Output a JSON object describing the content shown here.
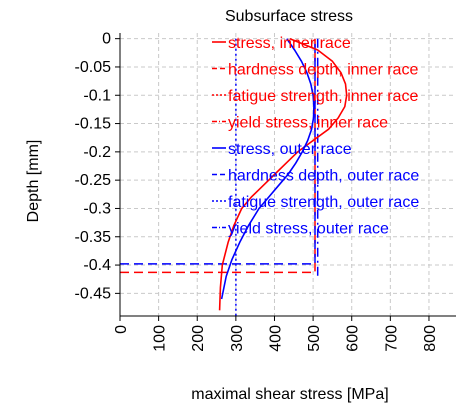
{
  "chart_data": {
    "type": "line",
    "title": "Subsurface stress",
    "xlabel": "maximal shear stress [MPa]",
    "ylabel": "Depth [mm]",
    "xlim": [
      0,
      870
    ],
    "ylim": [
      -0.49,
      0.01
    ],
    "xticks": [
      0,
      100,
      200,
      300,
      400,
      500,
      600,
      700,
      800
    ],
    "xtick_labels": [
      "0",
      "100",
      "200",
      "300",
      "400",
      "500",
      "600",
      "700",
      "800"
    ],
    "yticks": [
      0,
      -0.05,
      -0.1,
      -0.15,
      -0.2,
      -0.25,
      -0.3,
      -0.35,
      -0.4,
      -0.45
    ],
    "ytick_labels": [
      "0",
      "-0.05",
      "-0.1",
      "-0.15",
      "-0.2",
      "-0.25",
      "-0.3",
      "-0.35",
      "-0.4",
      "-0.45"
    ],
    "grid": true,
    "legend_position": "top-right",
    "series": [
      {
        "name": "stress, inner race",
        "color": "#ff0000",
        "style": "solid",
        "x": [
          440,
          512,
          550,
          572,
          584,
          587,
          582,
          565,
          540,
          500,
          460,
          430,
          400,
          370,
          340,
          315,
          295,
          280,
          265,
          260,
          258
        ],
        "y": [
          0,
          -0.02,
          -0.04,
          -0.06,
          -0.08,
          -0.1,
          -0.12,
          -0.14,
          -0.16,
          -0.18,
          -0.2,
          -0.22,
          -0.24,
          -0.26,
          -0.28,
          -0.3,
          -0.33,
          -0.36,
          -0.4,
          -0.44,
          -0.48
        ]
      },
      {
        "name": "hardness depth, inner race",
        "color": "#ff0000",
        "style": "dashed",
        "x": [
          0,
          505,
          505
        ],
        "y": [
          -0.413,
          -0.413,
          0
        ]
      },
      {
        "name": "fatigue strength, inner race",
        "color": "#ff0000",
        "style": "dotted",
        "x": [],
        "y": []
      },
      {
        "name": "yield stress, inner race",
        "color": "#ff0000",
        "style": "dashdot",
        "x": [],
        "y": []
      },
      {
        "name": "stress, outer race",
        "color": "#0000ff",
        "style": "solid",
        "x": [
          432,
          452,
          470,
          484,
          494,
          500,
          502,
          501,
          496,
          486,
          472,
          455,
          435,
          410,
          385,
          360,
          333,
          310,
          290,
          275,
          263
        ],
        "y": [
          0,
          -0.02,
          -0.04,
          -0.06,
          -0.08,
          -0.1,
          -0.12,
          -0.14,
          -0.16,
          -0.18,
          -0.2,
          -0.22,
          -0.24,
          -0.26,
          -0.28,
          -0.3,
          -0.33,
          -0.36,
          -0.39,
          -0.42,
          -0.46
        ]
      },
      {
        "name": "hardness depth, outer race",
        "color": "#0000ff",
        "style": "dashed",
        "x": [
          0,
          505,
          505
        ],
        "y": [
          -0.398,
          -0.398,
          0
        ]
      },
      {
        "name": "fatigue strength, outer race",
        "color": "#0000ff",
        "style": "dotted",
        "x": [
          300,
          300
        ],
        "y": [
          0,
          -0.49
        ]
      },
      {
        "name": "yield stress, outer race",
        "color": "#0000ff",
        "style": "dashdot",
        "x": [
          512,
          512
        ],
        "y": [
          0,
          -0.42
        ]
      }
    ]
  }
}
